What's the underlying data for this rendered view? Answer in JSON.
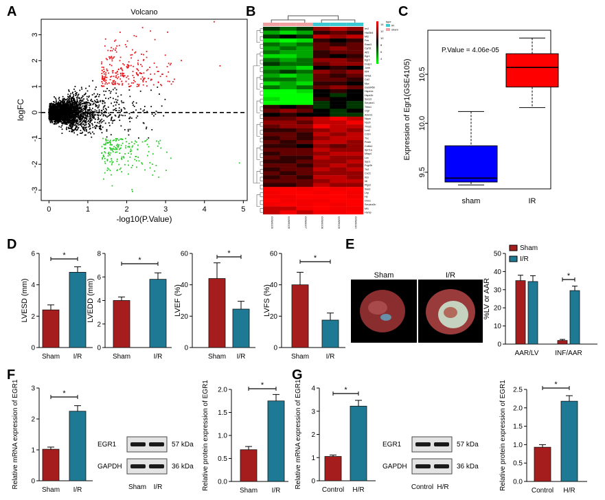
{
  "panel_letters": [
    "A",
    "B",
    "C",
    "D",
    "E",
    "F",
    "G"
  ],
  "colors": {
    "sham": "#a61d1d",
    "ir": "#1e7a94",
    "up": "#e8141a",
    "down": "#25c925",
    "ns": "#000000",
    "ir_box": "#ff0000",
    "sham_box": "#0000ff"
  },
  "chart_data": [
    {
      "id": "A",
      "type": "scatter",
      "title": "Volcano",
      "xlabel": "-log10(P.Value)",
      "ylabel": "logFC",
      "xlim": [
        -0.2,
        5.1
      ],
      "ylim": [
        -3.4,
        3.6
      ],
      "xticks": [
        0,
        1,
        2,
        3,
        4,
        5
      ],
      "yticks": [
        -3,
        -2,
        -1,
        0,
        1,
        2,
        3
      ],
      "series": [
        {
          "name": "up",
          "color": "#e8141a"
        },
        {
          "name": "down",
          "color": "#25c925"
        },
        {
          "name": "not significant",
          "color": "#000000"
        }
      ],
      "threshold_line": {
        "y": 0,
        "style": "dashed"
      },
      "notable_points": [
        {
          "x": 4.25,
          "y": 3.5
        },
        {
          "x": 3.05,
          "y": 3.1
        },
        {
          "x": 4.4,
          "y": 1.8
        },
        {
          "x": 4.9,
          "y": -1.95
        },
        {
          "x": 2.15,
          "y": -3.05
        },
        {
          "x": 2.8,
          "y": -1.3
        }
      ]
    },
    {
      "id": "B",
      "type": "heatmap",
      "legend": {
        "title": "type",
        "items": [
          "IR",
          "sham"
        ]
      },
      "colorbar_ticks": [
        "14",
        "12",
        "10",
        "8",
        "6",
        "4"
      ],
      "column_groups": [
        "sham",
        "sham",
        "sham",
        "IR",
        "IR",
        "IR"
      ],
      "column_labels": [
        "GSM4105",
        "GSM4106",
        "GSM4107",
        "GSM4108",
        "GSM4109",
        "GSM4110"
      ],
      "row_labels": [
        "Ier2",
        "Hsd3b5",
        "Mt2",
        "Fos",
        "Rasd1",
        "Cyr61",
        "Atf3",
        "Egr1",
        "Egr2",
        "Dusp1",
        "Junb",
        "Klf4",
        "Nr4a1",
        "Ccl2",
        "Myc",
        "Gadd45b",
        "Hspa1a",
        "Hspa1b",
        "Socs3",
        "Serpine1",
        "Thbs1",
        "Ctgf",
        "Ankrd1",
        "Nppa",
        "Nppb",
        "Timp1",
        "Lcn2",
        "Cd14",
        "Tnc",
        "Postn",
        "Col8a1",
        "Sprr1a",
        "Mfap4",
        "Lox",
        "Spp1",
        "Fcgr2b",
        "Tlr2",
        "Cxcl1",
        "Il1b",
        "Il6",
        "Ptgs2",
        "Saa3",
        "Lbp",
        "Hp",
        "Orm1",
        "Serpina3n",
        "Mt1",
        "Hamp"
      ],
      "values": [
        [
          7,
          6,
          7,
          11,
          12,
          11
        ],
        [
          5,
          4,
          5,
          9,
          10,
          9
        ],
        [
          7,
          8,
          7,
          12,
          11,
          12
        ],
        [
          4,
          3,
          4,
          9,
          8,
          9
        ],
        [
          6,
          5,
          6,
          10,
          9,
          10
        ],
        [
          5,
          6,
          5,
          10,
          11,
          10
        ],
        [
          6,
          5,
          5,
          9,
          10,
          10
        ],
        [
          4,
          4,
          5,
          9,
          8,
          9
        ],
        [
          6,
          5,
          6,
          11,
          11,
          10
        ],
        [
          7,
          6,
          6,
          10,
          11,
          11
        ],
        [
          5,
          5,
          4,
          8,
          9,
          8
        ],
        [
          6,
          7,
          6,
          11,
          10,
          11
        ],
        [
          5,
          4,
          5,
          10,
          9,
          10
        ],
        [
          6,
          6,
          5,
          10,
          10,
          9
        ],
        [
          4,
          5,
          4,
          9,
          9,
          8
        ],
        [
          6,
          5,
          6,
          10,
          11,
          10
        ],
        [
          3,
          3,
          4,
          8,
          9,
          8
        ],
        [
          2,
          3,
          2,
          8,
          7,
          8
        ],
        [
          4,
          3,
          3,
          9,
          8,
          8
        ],
        [
          3,
          2,
          3,
          7,
          8,
          7
        ],
        [
          9,
          8,
          9,
          7,
          8,
          7
        ],
        [
          10,
          11,
          10,
          8,
          7,
          8
        ],
        [
          8,
          9,
          8,
          8,
          7,
          7
        ],
        [
          10,
          10,
          11,
          12,
          13,
          12
        ],
        [
          11,
          11,
          10,
          12,
          12,
          13
        ],
        [
          10,
          11,
          11,
          13,
          12,
          12
        ],
        [
          9,
          9,
          10,
          11,
          12,
          11
        ],
        [
          10,
          10,
          9,
          12,
          11,
          12
        ],
        [
          9,
          10,
          9,
          11,
          12,
          12
        ],
        [
          10,
          9,
          10,
          12,
          12,
          11
        ],
        [
          9,
          9,
          8,
          11,
          10,
          11
        ],
        [
          10,
          10,
          10,
          12,
          11,
          11
        ],
        [
          9,
          10,
          10,
          11,
          12,
          12
        ],
        [
          10,
          9,
          9,
          12,
          11,
          11
        ],
        [
          9,
          9,
          10,
          11,
          11,
          12
        ],
        [
          10,
          10,
          9,
          11,
          12,
          11
        ],
        [
          9,
          10,
          10,
          12,
          11,
          12
        ],
        [
          10,
          9,
          10,
          11,
          11,
          11
        ],
        [
          9,
          10,
          9,
          12,
          12,
          11
        ],
        [
          10,
          10,
          10,
          11,
          12,
          12
        ],
        [
          9,
          9,
          10,
          12,
          11,
          11
        ],
        [
          14,
          14,
          13,
          14,
          13,
          14
        ],
        [
          13,
          14,
          14,
          13,
          14,
          13
        ],
        [
          13,
          13,
          14,
          14,
          14,
          13
        ],
        [
          14,
          13,
          13,
          13,
          14,
          14
        ],
        [
          13,
          14,
          13,
          14,
          13,
          14
        ],
        [
          12,
          12,
          13,
          14,
          13,
          13
        ],
        [
          12,
          13,
          12,
          13,
          13,
          14
        ]
      ]
    },
    {
      "id": "C",
      "type": "box",
      "ylabel": "Expression of Egr1(GSE4105)",
      "annotation": "P.Value = 4.06e-05",
      "categories": [
        "sham",
        "IR"
      ],
      "ylim": [
        9.33,
        10.95
      ],
      "yticks": [
        9.5,
        10.0,
        10.5
      ],
      "boxes": [
        {
          "name": "sham",
          "min": 9.37,
          "q1": 9.4,
          "median": 9.44,
          "q3": 9.77,
          "max": 10.12
        },
        {
          "name": "IR",
          "min": 10.16,
          "q1": 10.37,
          "median": 10.57,
          "q3": 10.71,
          "max": 10.87
        }
      ]
    },
    {
      "id": "D1",
      "type": "bar",
      "ylabel": "LVESD (mm)",
      "categories": [
        "Sham",
        "I/R"
      ],
      "values": [
        2.4,
        4.8
      ],
      "errors": [
        0.32,
        0.35
      ],
      "ylim": [
        0,
        6
      ],
      "yticks": [
        0,
        2,
        4,
        6
      ],
      "sig": "*"
    },
    {
      "id": "D2",
      "type": "bar",
      "ylabel": "LVEDD (mm)",
      "categories": [
        "Sham",
        "I/R"
      ],
      "values": [
        4.0,
        5.8
      ],
      "errors": [
        0.3,
        0.55
      ],
      "ylim": [
        0,
        8
      ],
      "yticks": [
        0,
        2,
        4,
        6,
        8
      ],
      "sig": "*"
    },
    {
      "id": "D3",
      "type": "bar",
      "ylabel": "LVEF (%)",
      "categories": [
        "Sham",
        "I/R"
      ],
      "values": [
        44,
        24.5
      ],
      "errors": [
        10,
        5
      ],
      "ylim": [
        0,
        60
      ],
      "yticks": [
        0,
        20,
        40,
        60
      ],
      "sig": "*"
    },
    {
      "id": "D4",
      "type": "bar",
      "ylabel": "LVFS (%)",
      "categories": [
        "Sham",
        "I/R"
      ],
      "values": [
        40,
        17.5
      ],
      "errors": [
        8,
        4.5
      ],
      "ylim": [
        0,
        60
      ],
      "yticks": [
        0,
        20,
        40,
        60
      ],
      "sig": "*"
    },
    {
      "id": "E",
      "type": "bar",
      "ylabel": "%LV or AAR",
      "categories": [
        "AAR/LV",
        "INF/AAR"
      ],
      "series": [
        {
          "name": "Sham",
          "values": [
            35,
            2
          ],
          "errors": [
            3,
            0.6
          ]
        },
        {
          "name": "I/R",
          "values": [
            34.5,
            29.5
          ],
          "errors": [
            3.2,
            2.5
          ]
        }
      ],
      "ylim": [
        0,
        50
      ],
      "yticks": [
        0,
        10,
        20,
        30,
        40,
        50
      ],
      "sig": "*"
    },
    {
      "id": "F1",
      "type": "bar",
      "ylabel": "Relative mRNA expression of EGR1",
      "categories": [
        "Sham",
        "I/R"
      ],
      "values": [
        1.02,
        2.25
      ],
      "errors": [
        0.07,
        0.18
      ],
      "ylim": [
        0,
        3
      ],
      "yticks": [
        0,
        1,
        2,
        3
      ],
      "sig": "*"
    },
    {
      "id": "F2",
      "type": "bar",
      "ylabel": "Relative protein expression of EGR1",
      "categories": [
        "Sham",
        "I/R"
      ],
      "values": [
        0.69,
        1.75
      ],
      "errors": [
        0.07,
        0.14
      ],
      "ylim": [
        0,
        2.0
      ],
      "yticks": [
        0,
        0.5,
        1.0,
        1.5,
        2.0
      ],
      "tick_format": "fixed1",
      "sig": "*"
    },
    {
      "id": "G1",
      "type": "bar",
      "ylabel": "Relative mRNA expression of EGR1",
      "categories": [
        "Control",
        "H/R"
      ],
      "values": [
        1.05,
        3.22
      ],
      "errors": [
        0.06,
        0.25
      ],
      "ylim": [
        0,
        4
      ],
      "yticks": [
        0,
        1,
        2,
        3,
        4
      ],
      "sig": "*"
    },
    {
      "id": "G2",
      "type": "bar",
      "ylabel": "Relative protein expression of EGR1",
      "categories": [
        "Control",
        "H/R"
      ],
      "values": [
        0.93,
        2.18
      ],
      "errors": [
        0.07,
        0.15
      ],
      "ylim": [
        0,
        2.5
      ],
      "yticks": [
        0,
        0.5,
        1.0,
        1.5,
        2.0,
        2.5
      ],
      "tick_format": "fixed1",
      "sig": "*"
    }
  ],
  "panel_e_images": {
    "labels": [
      "Sham",
      "I/R"
    ]
  },
  "blots": [
    {
      "id": "F",
      "rows": [
        "EGR1",
        "GAPDH"
      ],
      "sizes": [
        "57 kDa",
        "36 kDa"
      ],
      "lanes": [
        "Sham",
        "I/R"
      ]
    },
    {
      "id": "G",
      "rows": [
        "EGR1",
        "GAPDH"
      ],
      "sizes": [
        "57 kDa",
        "36 kDa"
      ],
      "lanes": [
        "Control",
        "H/R"
      ]
    }
  ]
}
